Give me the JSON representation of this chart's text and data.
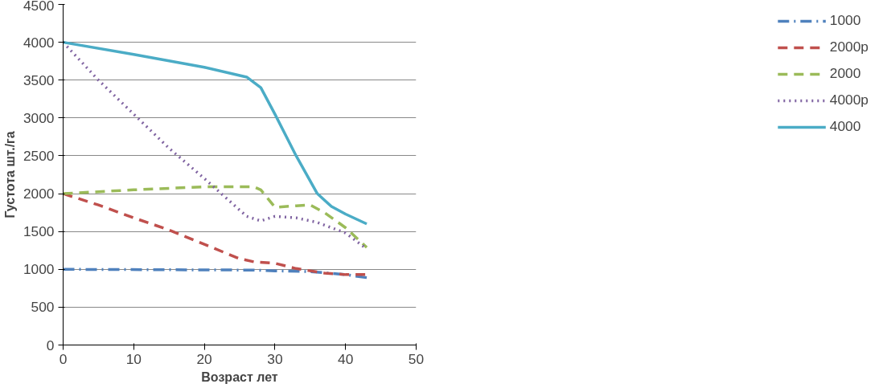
{
  "chart_data": {
    "type": "line",
    "xlabel": "Возраст лет",
    "ylabel": "Густота шт./га",
    "xlim": [
      0,
      50
    ],
    "xticks": [
      0,
      10,
      20,
      30,
      40,
      50
    ],
    "ylim": [
      0,
      4500
    ],
    "yticks": [
      0,
      500,
      1000,
      1500,
      2000,
      2500,
      3000,
      3500,
      4000,
      4500
    ],
    "grid": "y",
    "legend": "right",
    "series": [
      {
        "name": "1000",
        "color": "#4f81bd",
        "line_style": "dashdot",
        "x": [
          0,
          27,
          30,
          35,
          40,
          43
        ],
        "values": [
          1000,
          990,
          980,
          970,
          930,
          890
        ]
      },
      {
        "name": "2000р",
        "color": "#c0504d",
        "line_style": "dashed",
        "x": [
          0,
          5,
          10,
          15,
          20,
          25,
          27,
          30,
          33,
          37,
          40,
          43
        ],
        "values": [
          2000,
          1850,
          1680,
          1520,
          1330,
          1140,
          1100,
          1080,
          1010,
          950,
          930,
          930
        ]
      },
      {
        "name": "2000",
        "color": "#9bbb59",
        "line_style": "dashed",
        "x": [
          0,
          10,
          20,
          27,
          28,
          30,
          33,
          35,
          37,
          40,
          43
        ],
        "values": [
          2000,
          2050,
          2090,
          2090,
          2050,
          1820,
          1840,
          1850,
          1750,
          1550,
          1290
        ]
      },
      {
        "name": "4000р",
        "color": "#8064a2",
        "line_style": "dotted",
        "x": [
          0,
          5,
          10,
          15,
          20,
          23,
          26,
          28,
          30,
          33,
          36,
          40,
          43
        ],
        "values": [
          4000,
          3500,
          3050,
          2600,
          2200,
          1950,
          1700,
          1640,
          1700,
          1680,
          1620,
          1480,
          1270
        ]
      },
      {
        "name": "4000",
        "color": "#4bacc6",
        "line_style": "solid",
        "x": [
          0,
          10,
          20,
          26,
          28,
          30,
          33,
          36,
          38,
          40,
          43
        ],
        "values": [
          4000,
          3840,
          3670,
          3540,
          3400,
          3050,
          2500,
          2000,
          1830,
          1730,
          1600
        ]
      }
    ]
  }
}
